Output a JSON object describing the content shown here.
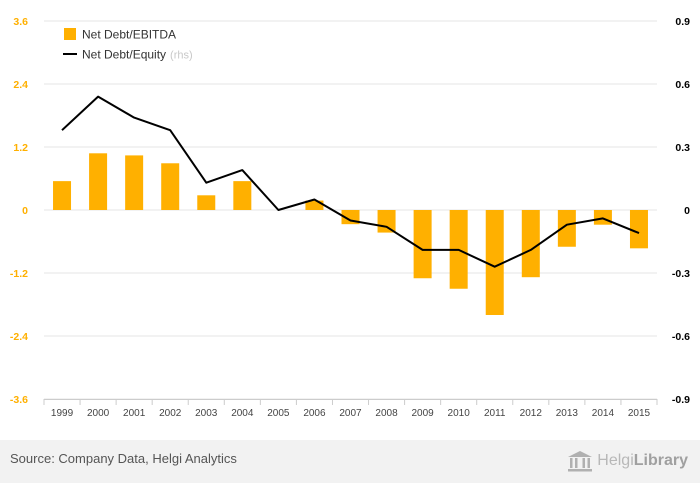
{
  "chart_data": {
    "type": "bar+line",
    "categories": [
      "1999",
      "2000",
      "2001",
      "2002",
      "2003",
      "2004",
      "2005",
      "2006",
      "2007",
      "2008",
      "2009",
      "2010",
      "2011",
      "2012",
      "2013",
      "2014",
      "2015"
    ],
    "series": [
      {
        "name": "Net Debt/EBITDA",
        "axis": "left",
        "kind": "bar",
        "color": "#FFB000",
        "values": [
          0.55,
          1.08,
          1.04,
          0.89,
          0.28,
          0.55,
          0.0,
          0.18,
          -0.27,
          -0.43,
          -1.3,
          -1.5,
          -2.0,
          -1.28,
          -0.7,
          -0.28,
          -0.73
        ]
      },
      {
        "name": "Net Debt/Equity",
        "name_suffix": "(rhs)",
        "axis": "right",
        "kind": "line",
        "color": "#000000",
        "values": [
          0.38,
          0.54,
          0.44,
          0.38,
          0.13,
          0.19,
          0.0,
          0.05,
          -0.05,
          -0.08,
          -0.19,
          -0.19,
          -0.27,
          -0.19,
          -0.07,
          -0.04,
          -0.11
        ]
      }
    ],
    "y_left": {
      "min": -3.6,
      "max": 3.6,
      "ticks": [
        "3.6",
        "2.4",
        "1.2",
        "0",
        "-1.2",
        "-2.4",
        "-3.6"
      ],
      "color": "#FFB000"
    },
    "y_right": {
      "min": -0.9,
      "max": 0.9,
      "ticks": [
        "0.9",
        "0.6",
        "0.3",
        "0",
        "-0.3",
        "-0.6",
        "-0.9"
      ],
      "color": "#000000"
    },
    "grid": true,
    "legend_position": "top-left"
  },
  "footer": {
    "source": "Source: Company Data, Helgi Analytics",
    "brand_light": "Helgi",
    "brand_dark": "Library"
  }
}
